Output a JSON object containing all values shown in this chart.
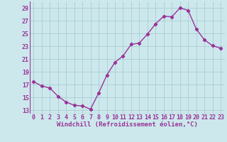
{
  "x": [
    0,
    1,
    2,
    3,
    4,
    5,
    6,
    7,
    8,
    9,
    10,
    11,
    12,
    13,
    14,
    15,
    16,
    17,
    18,
    19,
    20,
    21,
    22,
    23
  ],
  "y": [
    17.5,
    16.8,
    16.5,
    15.2,
    14.3,
    13.8,
    13.7,
    13.2,
    15.7,
    18.5,
    20.5,
    21.5,
    23.3,
    23.5,
    24.9,
    26.5,
    27.7,
    27.6,
    29.0,
    28.6,
    25.7,
    24.0,
    23.1,
    22.7
  ],
  "line_color": "#993399",
  "marker": "D",
  "marker_size": 2.2,
  "bg_color": "#cce8ec",
  "grid_color": "#aacdd4",
  "xlabel": "Windchill (Refroidissement éolien,°C)",
  "xlabel_color": "#993399",
  "tick_color": "#993399",
  "yticks": [
    13,
    15,
    17,
    19,
    21,
    23,
    25,
    27,
    29
  ],
  "xticks": [
    0,
    1,
    2,
    3,
    4,
    5,
    6,
    7,
    8,
    9,
    10,
    11,
    12,
    13,
    14,
    15,
    16,
    17,
    18,
    19,
    20,
    21,
    22,
    23
  ],
  "ylim": [
    12.5,
    30.0
  ],
  "xlim": [
    -0.5,
    23.5
  ],
  "xlabel_fontsize": 6.5,
  "tick_fontsize": 6.0,
  "linewidth": 1.0
}
